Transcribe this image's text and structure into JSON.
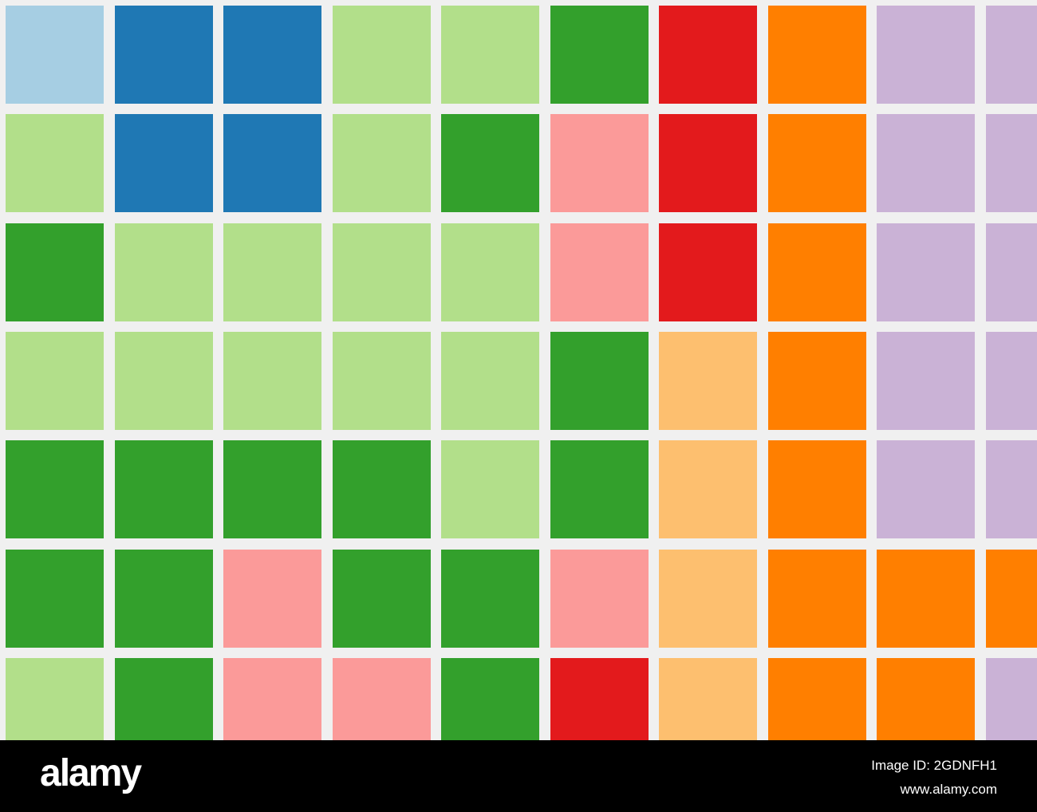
{
  "grid": {
    "rows": [
      [
        "#a6cee3",
        "#1f78b4",
        "#1f78b4",
        "#b2df8a",
        "#b2df8a",
        "#33a02c",
        "#e31a1c",
        "#ff7f00",
        "#cab2d6",
        "#cab2d6"
      ],
      [
        "#b2df8a",
        "#1f78b4",
        "#1f78b4",
        "#b2df8a",
        "#33a02c",
        "#fb9a99",
        "#e31a1c",
        "#ff7f00",
        "#cab2d6",
        "#cab2d6"
      ],
      [
        "#33a02c",
        "#b2df8a",
        "#b2df8a",
        "#b2df8a",
        "#b2df8a",
        "#fb9a99",
        "#e31a1c",
        "#ff7f00",
        "#cab2d6",
        "#cab2d6"
      ],
      [
        "#b2df8a",
        "#b2df8a",
        "#b2df8a",
        "#b2df8a",
        "#b2df8a",
        "#33a02c",
        "#fdbf6f",
        "#ff7f00",
        "#cab2d6",
        "#cab2d6"
      ],
      [
        "#33a02c",
        "#33a02c",
        "#33a02c",
        "#33a02c",
        "#b2df8a",
        "#33a02c",
        "#fdbf6f",
        "#ff7f00",
        "#cab2d6",
        "#cab2d6"
      ],
      [
        "#33a02c",
        "#33a02c",
        "#fb9a99",
        "#33a02c",
        "#33a02c",
        "#fb9a99",
        "#fdbf6f",
        "#ff7f00",
        "#ff7f00",
        "#ff7f00"
      ],
      [
        "#b2df8a",
        "#33a02c",
        "#fb9a99",
        "#fb9a99",
        "#33a02c",
        "#e31a1c",
        "#fdbf6f",
        "#ff7f00",
        "#ff7f00",
        "#cab2d6"
      ]
    ]
  },
  "footer": {
    "logo": "alamy",
    "image_id": "Image ID: 2GDNFH1",
    "site": "www.alamy.com"
  }
}
